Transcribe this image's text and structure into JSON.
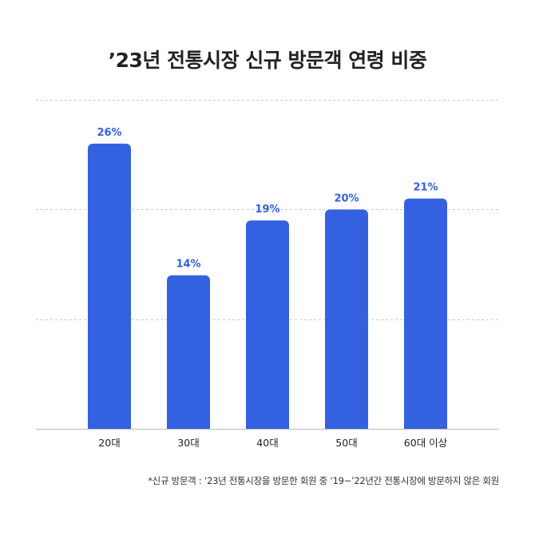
{
  "title": "’23년 전통시장 신규 방문객 연령 비중",
  "footnote": "*신규 방문객 : ‘23년 전통시장을 방문한 회원 중 ‘19~’22년간 전통시장에 방문하지 않은 회원",
  "colors": {
    "bar": "#3461e0",
    "label": "#3461e0",
    "grid": "#cccccc",
    "axis": "#bbbbbb",
    "text": "#222222"
  },
  "chart_data": {
    "type": "bar",
    "title": "’23년 전통시장 신규 방문객 연령 비중",
    "categories": [
      "20대",
      "30대",
      "40대",
      "50대",
      "60대 이상"
    ],
    "values": [
      26,
      14,
      19,
      20,
      21
    ],
    "value_labels": [
      "26%",
      "14%",
      "19%",
      "20%",
      "21%"
    ],
    "unit": "%",
    "ylim": [
      0,
      30
    ],
    "grid": true,
    "grid_values": [
      10,
      20,
      30
    ],
    "xlabel": "",
    "ylabel": ""
  }
}
